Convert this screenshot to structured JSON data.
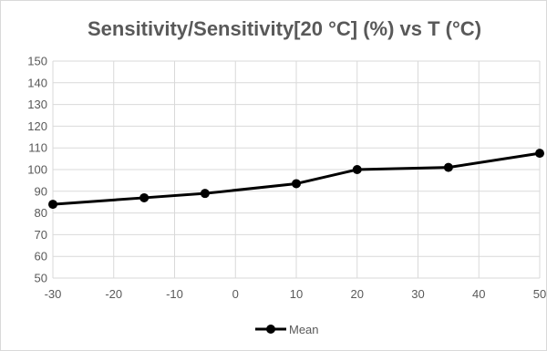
{
  "chart_data": {
    "type": "line",
    "title": "Sensitivity/Sensitivity[20 °C] (%) vs T (°C)",
    "xlabel": "",
    "ylabel": "",
    "xlim": [
      -30,
      50
    ],
    "ylim": [
      50,
      150
    ],
    "x_ticks": [
      -30,
      -20,
      -10,
      0,
      10,
      20,
      30,
      40,
      50
    ],
    "y_ticks": [
      50,
      60,
      70,
      80,
      90,
      100,
      110,
      120,
      130,
      140,
      150
    ],
    "grid": true,
    "legend_position": "bottom",
    "series": [
      {
        "name": "Mean",
        "color": "#000000",
        "marker": "circle",
        "x": [
          -30,
          -15,
          -5,
          10,
          20,
          35,
          50
        ],
        "y": [
          84,
          87,
          89,
          93.5,
          100,
          101,
          107.5
        ]
      }
    ]
  }
}
